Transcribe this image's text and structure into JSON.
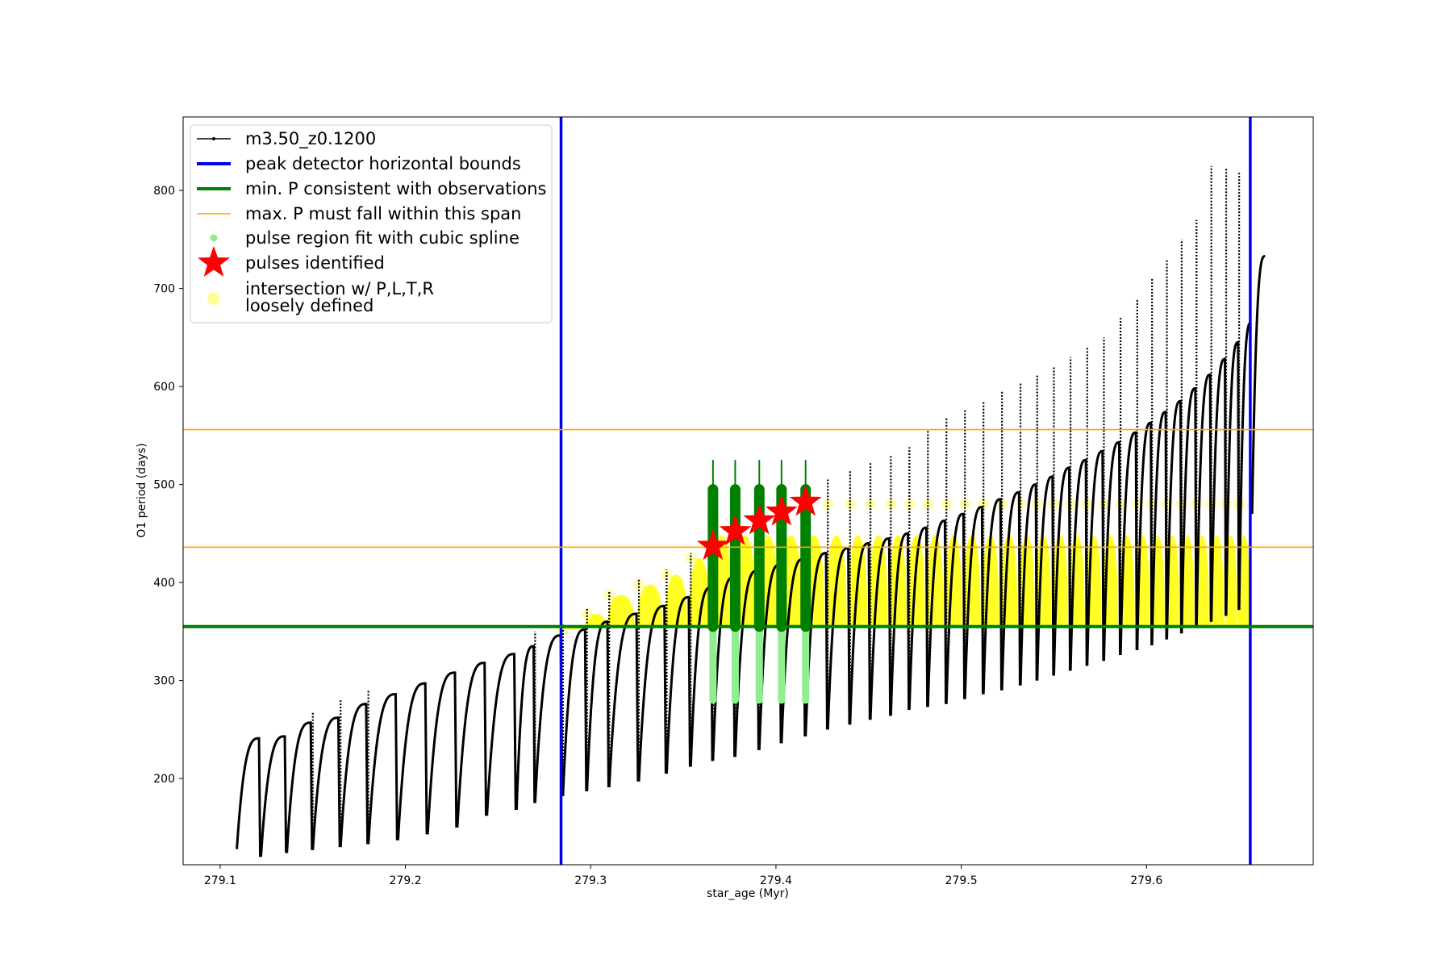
{
  "chart_data": {
    "type": "line",
    "title": "",
    "xlabel": "star_age (Myr)",
    "ylabel": "O1 period (days)",
    "xlim": [
      279.08,
      279.69
    ],
    "ylim": [
      112,
      875
    ],
    "xticks": [
      279.1,
      279.2,
      279.3,
      279.4,
      279.5,
      279.6
    ],
    "xtick_labels": [
      "279.1",
      "279.2",
      "279.3",
      "279.4",
      "279.5",
      "279.6"
    ],
    "yticks": [
      200,
      300,
      400,
      500,
      600,
      700,
      800
    ],
    "ytick_labels": [
      "200",
      "300",
      "400",
      "500",
      "600",
      "700",
      "800"
    ],
    "grid": false,
    "legend_position": "top-left",
    "legend": [
      {
        "label": "m3.50_z0.1200",
        "style": "line-dot",
        "color": "#000000"
      },
      {
        "label": "peak detector horizontal bounds",
        "style": "thick-line",
        "color": "#0000ee"
      },
      {
        "label": "min. P consistent with observations",
        "style": "thick-line",
        "color": "#008000"
      },
      {
        "label": "max. P must fall within this span",
        "style": "thin-line",
        "color": "#ffa500"
      },
      {
        "label": "pulse region fit with cubic spline",
        "style": "dot",
        "color": "#90ee90"
      },
      {
        "label": "pulses identified",
        "style": "star",
        "color": "#ff0000"
      },
      {
        "label": "intersection w/ P,L,T,R",
        "label_line2": "loosely defined",
        "style": "big-dot",
        "color": "#ffff99"
      }
    ],
    "reference_lines": {
      "vertical_blue": [
        279.284,
        279.656
      ],
      "horizontal_green": 355,
      "horizontal_orange": [
        436,
        556
      ]
    },
    "pulses": [
      {
        "t": 279.109,
        "low": 128,
        "peak": 241,
        "end": 241
      },
      {
        "t": 279.122,
        "low": 120,
        "peak": 244,
        "end": 243
      },
      {
        "t": 279.136,
        "low": 124,
        "peak": 260,
        "end": 257
      },
      {
        "t": 279.15,
        "low": 127,
        "peak": 268,
        "end": 262
      },
      {
        "t": 279.165,
        "low": 130,
        "peak": 281,
        "end": 276
      },
      {
        "t": 279.18,
        "low": 133,
        "peak": 290,
        "end": 286
      },
      {
        "t": 279.196,
        "low": 137,
        "peak": 300,
        "end": 297
      },
      {
        "t": 279.212,
        "low": 143,
        "peak": 311,
        "end": 308
      },
      {
        "t": 279.228,
        "low": 150,
        "peak": 321,
        "end": 318
      },
      {
        "t": 279.244,
        "low": 162,
        "peak": 330,
        "end": 327
      },
      {
        "t": 279.26,
        "low": 168,
        "peak": 337,
        "end": 335
      },
      {
        "t": 279.27,
        "low": 175,
        "peak": 350,
        "end": 346
      },
      {
        "t": 279.285,
        "low": 182,
        "peak": 357,
        "end": 352
      },
      {
        "t": 279.298,
        "low": 187,
        "peak": 373,
        "end": 360
      },
      {
        "t": 279.31,
        "low": 191,
        "peak": 392,
        "end": 368
      },
      {
        "t": 279.326,
        "low": 197,
        "peak": 403,
        "end": 376
      },
      {
        "t": 279.341,
        "low": 205,
        "peak": 413,
        "end": 385
      },
      {
        "t": 279.354,
        "low": 212,
        "peak": 430,
        "end": 395
      },
      {
        "t": 279.366,
        "low": 218,
        "peak": 470,
        "end": 405
      },
      {
        "t": 279.378,
        "low": 222,
        "peak": 480,
        "end": 412
      },
      {
        "t": 279.391,
        "low": 229,
        "peak": 488,
        "end": 418
      },
      {
        "t": 279.403,
        "low": 236,
        "peak": 493,
        "end": 424
      },
      {
        "t": 279.416,
        "low": 243,
        "peak": 497,
        "end": 430
      },
      {
        "t": 279.428,
        "low": 250,
        "peak": 505,
        "end": 435
      },
      {
        "t": 279.44,
        "low": 255,
        "peak": 515,
        "end": 440
      },
      {
        "t": 279.451,
        "low": 260,
        "peak": 523,
        "end": 445
      },
      {
        "t": 279.462,
        "low": 264,
        "peak": 530,
        "end": 450
      },
      {
        "t": 279.472,
        "low": 270,
        "peak": 538,
        "end": 456
      },
      {
        "t": 279.482,
        "low": 273,
        "peak": 556,
        "end": 463
      },
      {
        "t": 279.492,
        "low": 276,
        "peak": 568,
        "end": 470
      },
      {
        "t": 279.502,
        "low": 281,
        "peak": 576,
        "end": 477
      },
      {
        "t": 279.512,
        "low": 286,
        "peak": 585,
        "end": 485
      },
      {
        "t": 279.522,
        "low": 290,
        "peak": 595,
        "end": 492
      },
      {
        "t": 279.532,
        "low": 295,
        "peak": 603,
        "end": 500
      },
      {
        "t": 279.541,
        "low": 300,
        "peak": 612,
        "end": 508
      },
      {
        "t": 279.55,
        "low": 305,
        "peak": 620,
        "end": 517
      },
      {
        "t": 279.559,
        "low": 310,
        "peak": 630,
        "end": 525
      },
      {
        "t": 279.568,
        "low": 315,
        "peak": 640,
        "end": 534
      },
      {
        "t": 279.577,
        "low": 320,
        "peak": 650,
        "end": 543
      },
      {
        "t": 279.586,
        "low": 326,
        "peak": 670,
        "end": 553
      },
      {
        "t": 279.595,
        "low": 331,
        "peak": 690,
        "end": 563
      },
      {
        "t": 279.603,
        "low": 336,
        "peak": 710,
        "end": 574
      },
      {
        "t": 279.611,
        "low": 342,
        "peak": 730,
        "end": 585
      },
      {
        "t": 279.619,
        "low": 348,
        "peak": 750,
        "end": 598
      },
      {
        "t": 279.627,
        "low": 354,
        "peak": 770,
        "end": 612
      },
      {
        "t": 279.635,
        "low": 360,
        "peak": 825,
        "end": 628
      },
      {
        "t": 279.643,
        "low": 366,
        "peak": 823,
        "end": 645
      },
      {
        "t": 279.65,
        "low": 372,
        "peak": 818,
        "end": 665
      }
    ],
    "final_branch": {
      "t_start": 279.657,
      "p_start": 470,
      "t_end": 279.664,
      "p_end": 733
    },
    "selected_pulses": [
      {
        "t": 279.366,
        "p": 437
      },
      {
        "t": 279.378,
        "p": 452
      },
      {
        "t": 279.391,
        "p": 463
      },
      {
        "t": 279.403,
        "p": 472
      },
      {
        "t": 279.416,
        "p": 482
      }
    ],
    "spline_region": {
      "x_start": 279.363,
      "x_end": 279.418,
      "y_low": 260,
      "y_high": 525
    }
  }
}
